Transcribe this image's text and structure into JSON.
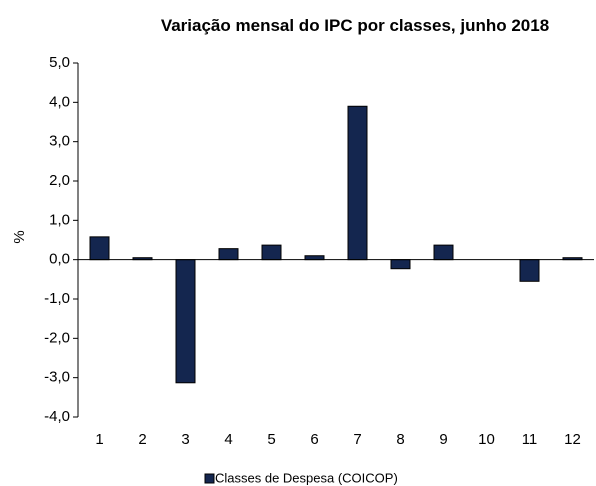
{
  "chart_data": {
    "type": "bar",
    "title": "Variação mensal do IPC por classes,  junho 2018",
    "ylabel": "%",
    "categories": [
      "1",
      "2",
      "3",
      "4",
      "5",
      "6",
      "7",
      "8",
      "9",
      "10",
      "11",
      "12"
    ],
    "series": [
      {
        "name": "Classes de Despesa (COICOP)",
        "color": "#14264f",
        "values": [
          0.58,
          0.05,
          -3.13,
          0.28,
          0.37,
          0.1,
          3.9,
          -0.23,
          0.37,
          0,
          -0.55,
          0.05
        ]
      }
    ],
    "ylim": [
      -4,
      5
    ],
    "yticks": [
      {
        "value": -4,
        "label": "-4,0"
      },
      {
        "value": -3,
        "label": "-3,0"
      },
      {
        "value": -2,
        "label": "-2,0"
      },
      {
        "value": -1,
        "label": "-1,0"
      },
      {
        "value": 0,
        "label": "0,0"
      },
      {
        "value": 1,
        "label": "1,0"
      },
      {
        "value": 2,
        "label": "2,0"
      },
      {
        "value": 3,
        "label": "3,0"
      },
      {
        "value": 4,
        "label": "4,0"
      },
      {
        "value": 5,
        "label": "5,0"
      }
    ],
    "grid": false
  }
}
